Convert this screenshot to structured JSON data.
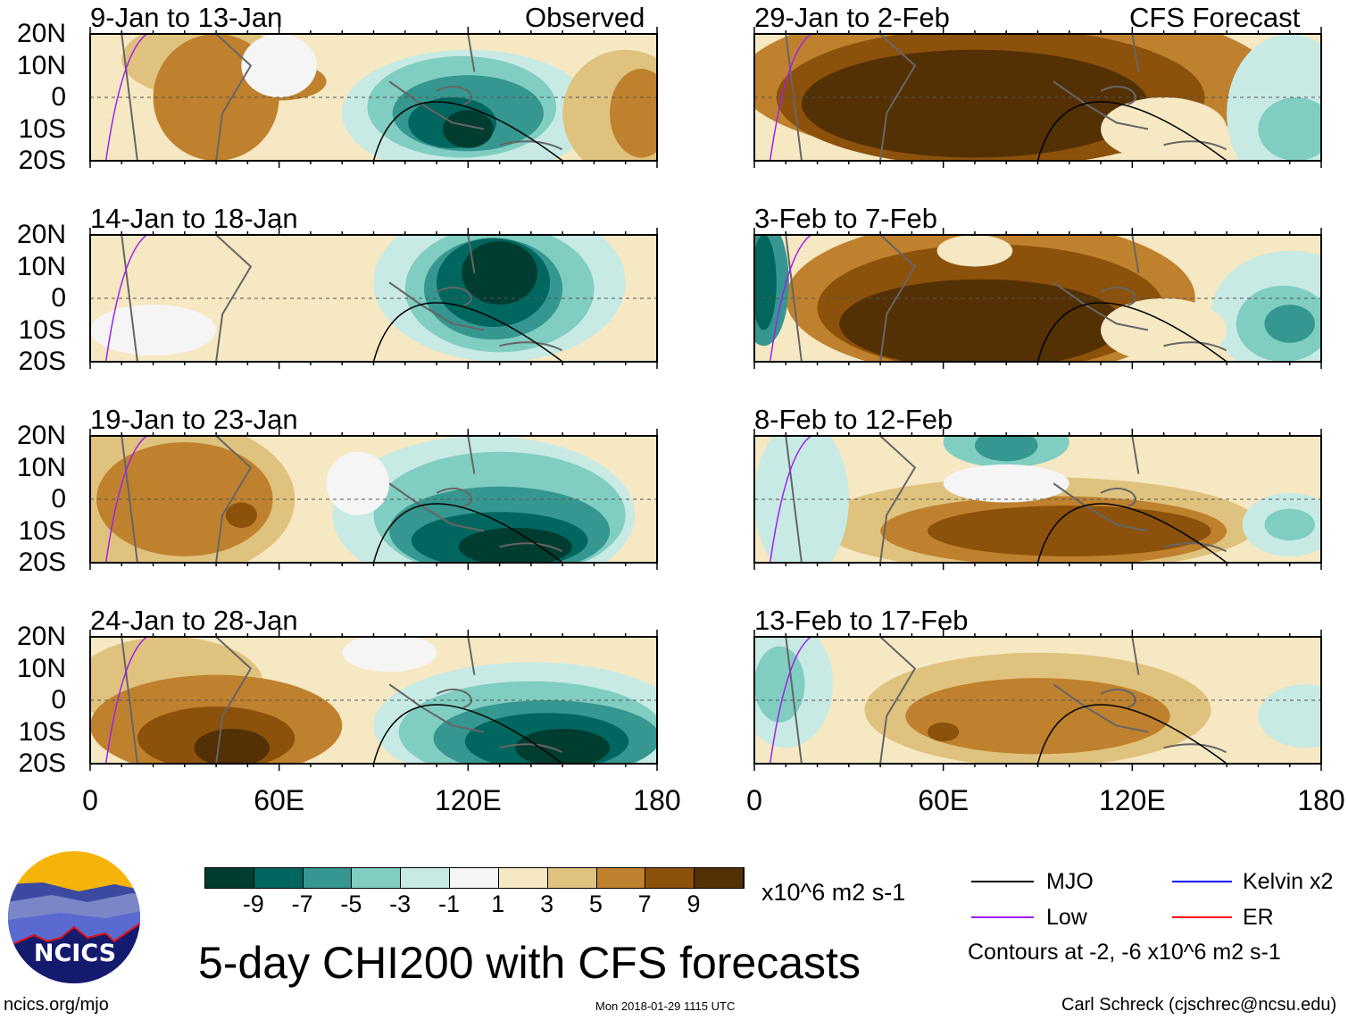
{
  "colorscale": [
    "#003c30",
    "#01665e",
    "#35978f",
    "#80cdc1",
    "#c7eae5",
    "#f5f5f5",
    "#f6e8c3",
    "#dfc27d",
    "#bf812d",
    "#8c510a",
    "#543005"
  ],
  "colorbar_labels": [
    "-9",
    "-7",
    "-5",
    "-3",
    "-1",
    "1",
    "3",
    "5",
    "7",
    "9"
  ],
  "colorbar_units": "x10^6 m2 s-1",
  "lat_labels": [
    "20N",
    "10N",
    "0",
    "10S",
    "20S"
  ],
  "lon_labels": [
    "0",
    "60E",
    "120E",
    "180"
  ],
  "columns": {
    "left_label": "Observed",
    "right_label": "CFS Forecast"
  },
  "panels": [
    {
      "title": "9-Jan to 13-Jan",
      "source": "observed"
    },
    {
      "title": "14-Jan to 18-Jan",
      "source": "observed"
    },
    {
      "title": "19-Jan to 23-Jan",
      "source": "observed"
    },
    {
      "title": "24-Jan to 28-Jan",
      "source": "observed"
    },
    {
      "title": "29-Jan to 2-Feb",
      "source": "forecast"
    },
    {
      "title": "3-Feb to 7-Feb",
      "source": "forecast"
    },
    {
      "title": "8-Feb to 12-Feb",
      "source": "forecast"
    },
    {
      "title": "13-Feb to 17-Feb",
      "source": "forecast"
    }
  ],
  "legend": {
    "items": [
      {
        "label": "MJO",
        "color": "#000000"
      },
      {
        "label": "Kelvin x2",
        "color": "#0000ff"
      },
      {
        "label": "Low",
        "color": "#a020f0"
      },
      {
        "label": "ER",
        "color": "#ff0000"
      }
    ],
    "contours_note": "Contours at -2, -6 x10^6 m2 s-1"
  },
  "main_title": "5-day CHI200 with CFS forecasts",
  "logo_text": "NCICS",
  "site": "ncics.org/mjo",
  "timestamp": "Mon 2018-01-29 1115 UTC",
  "author": "Carl Schreck (cjschrec@ncsu.edu)"
}
